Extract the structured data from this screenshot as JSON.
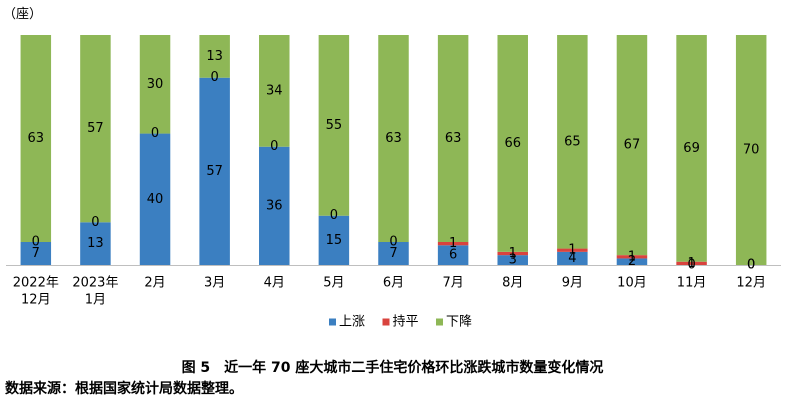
{
  "chart_data": {
    "type": "bar",
    "stacked": true,
    "title": "图 5　近一年 70 座大城市二手住宅价格环比涨跌城市数量变化情况",
    "xlabel": "",
    "ylabel": "（座）",
    "ylim": [
      0,
      70
    ],
    "grid": false,
    "legend": "bottom",
    "data_labels": true,
    "categories": [
      [
        "2022年",
        "12月"
      ],
      [
        "2023年",
        "1月"
      ],
      [
        "2月"
      ],
      [
        "3月"
      ],
      [
        "4月"
      ],
      [
        "5月"
      ],
      [
        "6月"
      ],
      [
        "7月"
      ],
      [
        "8月"
      ],
      [
        "9月"
      ],
      [
        "10月"
      ],
      [
        "11月"
      ],
      [
        "12月"
      ]
    ],
    "series": [
      {
        "name": "上涨",
        "color": "#3B7FC1",
        "values": [
          7,
          13,
          40,
          57,
          36,
          15,
          7,
          6,
          3,
          4,
          2,
          0,
          0
        ]
      },
      {
        "name": "持平",
        "color": "#D9433E",
        "values": [
          0,
          0,
          0,
          0,
          0,
          0,
          0,
          1,
          1,
          1,
          1,
          1,
          0
        ]
      },
      {
        "name": "下降",
        "color": "#8EB756",
        "values": [
          63,
          57,
          30,
          13,
          34,
          55,
          63,
          63,
          66,
          65,
          67,
          69,
          70
        ]
      }
    ]
  },
  "source_note": "数据来源：根据国家统计局数据整理。"
}
